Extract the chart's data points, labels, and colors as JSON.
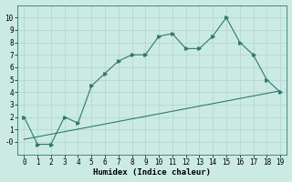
{
  "xlabel": "Humidex (Indice chaleur)",
  "line1_x": [
    0,
    1,
    2,
    3,
    4,
    5,
    6,
    7,
    8,
    9,
    10,
    11,
    12,
    13,
    14,
    15,
    16,
    17,
    18,
    19
  ],
  "line1_y": [
    2.0,
    -0.2,
    -0.2,
    2.0,
    1.5,
    4.5,
    5.5,
    6.5,
    7.0,
    7.0,
    8.5,
    8.7,
    7.5,
    7.5,
    8.5,
    10.0,
    8.0,
    7.0,
    5.0,
    4.0
  ],
  "line2_x": [
    0,
    19
  ],
  "line2_y": [
    0.2,
    4.1
  ],
  "line_color": "#2d7a6e",
  "bg_color": "#cceae4",
  "grid_color": "#aed4cc",
  "ylim": [
    -1,
    11
  ],
  "xlim": [
    -0.5,
    19.5
  ],
  "yticks": [
    0,
    1,
    2,
    3,
    4,
    5,
    6,
    7,
    8,
    9,
    10
  ],
  "xticks": [
    0,
    1,
    2,
    3,
    4,
    5,
    6,
    7,
    8,
    9,
    10,
    11,
    12,
    13,
    14,
    15,
    16,
    17,
    18,
    19
  ]
}
